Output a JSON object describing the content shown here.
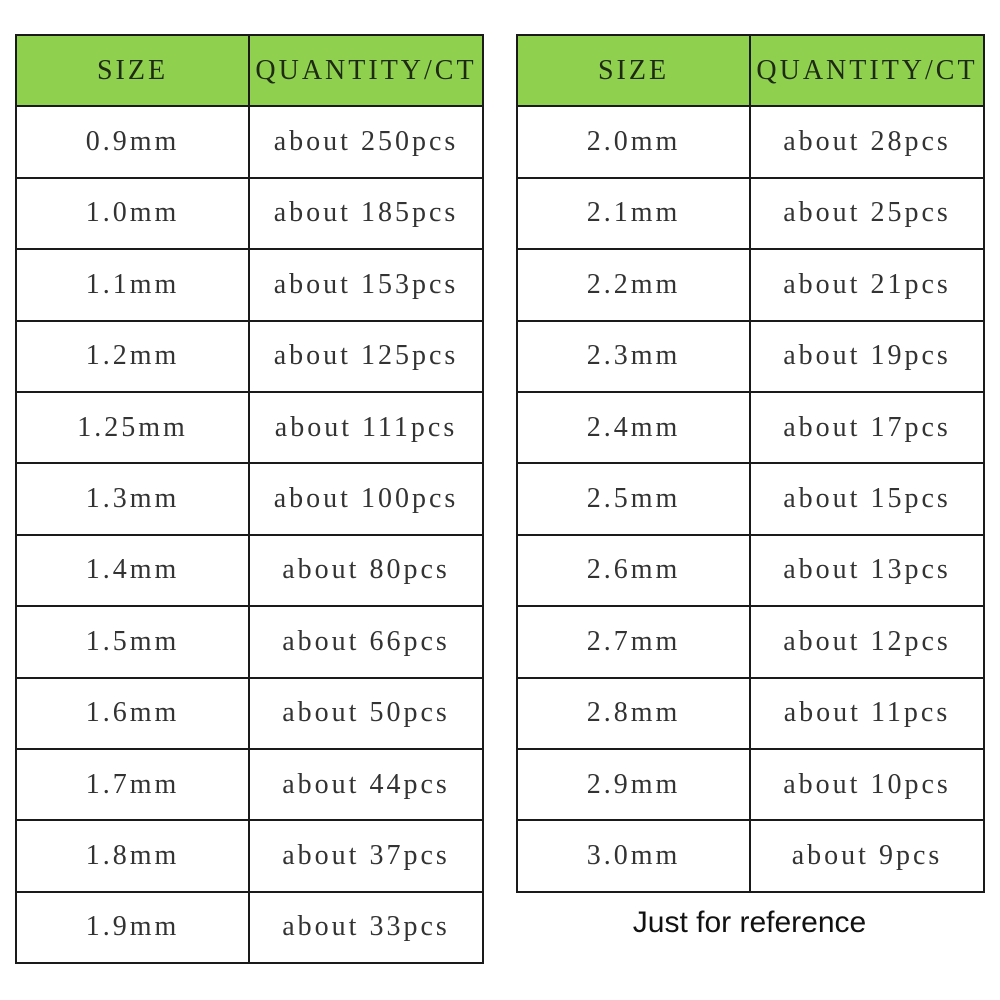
{
  "colors": {
    "header_bg": "#8fd14f",
    "border": "#1a1a1a"
  },
  "tables": [
    {
      "headers": [
        "SIZE",
        "QUANTITY/CT"
      ],
      "rows": [
        [
          "0.9mm",
          "about 250pcs"
        ],
        [
          "1.0mm",
          "about 185pcs"
        ],
        [
          "1.1mm",
          "about 153pcs"
        ],
        [
          "1.2mm",
          "about 125pcs"
        ],
        [
          "1.25mm",
          "about 111pcs"
        ],
        [
          "1.3mm",
          "about 100pcs"
        ],
        [
          "1.4mm",
          "about 80pcs"
        ],
        [
          "1.5mm",
          "about 66pcs"
        ],
        [
          "1.6mm",
          "about 50pcs"
        ],
        [
          "1.7mm",
          "about 44pcs"
        ],
        [
          "1.8mm",
          "about 37pcs"
        ],
        [
          "1.9mm",
          "about 33pcs"
        ]
      ]
    },
    {
      "headers": [
        "SIZE",
        "QUANTITY/CT"
      ],
      "rows": [
        [
          "2.0mm",
          "about 28pcs"
        ],
        [
          "2.1mm",
          "about 25pcs"
        ],
        [
          "2.2mm",
          "about 21pcs"
        ],
        [
          "2.3mm",
          "about 19pcs"
        ],
        [
          "2.4mm",
          "about 17pcs"
        ],
        [
          "2.5mm",
          "about 15pcs"
        ],
        [
          "2.6mm",
          "about 13pcs"
        ],
        [
          "2.7mm",
          "about 12pcs"
        ],
        [
          "2.8mm",
          "about 11pcs"
        ],
        [
          "2.9mm",
          "about 10pcs"
        ],
        [
          "3.0mm",
          "about 9pcs"
        ]
      ]
    }
  ],
  "note": "Just for reference"
}
